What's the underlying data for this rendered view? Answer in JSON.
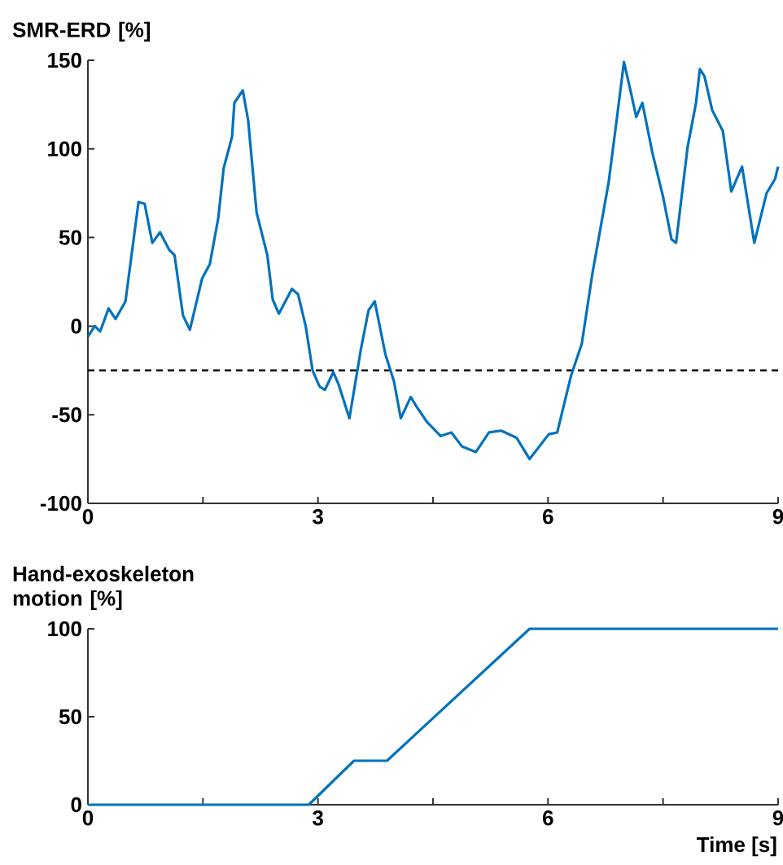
{
  "chart_data": [
    {
      "type": "line",
      "ylabel": "SMR-ERD [%]",
      "x": [
        0,
        0.09,
        0.16,
        0.27,
        0.36,
        0.49,
        0.56,
        0.66,
        0.74,
        0.84,
        0.94,
        1.06,
        1.13,
        1.24,
        1.33,
        1.49,
        1.59,
        1.7,
        1.77,
        1.88,
        1.91,
        2.02,
        2.09,
        2.2,
        2.34,
        2.41,
        2.49,
        2.66,
        2.74,
        2.84,
        2.93,
        3.02,
        3.09,
        3.2,
        3.27,
        3.41,
        3.56,
        3.66,
        3.74,
        3.88,
        3.99,
        4.08,
        4.21,
        4.28,
        4.42,
        4.6,
        4.74,
        4.88,
        5.06,
        5.23,
        5.39,
        5.59,
        5.76,
        6.01,
        6.12,
        6.3,
        6.44,
        6.58,
        6.79,
        6.9,
        6.99,
        7.08,
        7.15,
        7.23,
        7.36,
        7.5,
        7.61,
        7.67,
        7.82,
        7.93,
        7.98,
        8.04,
        8.14,
        8.28,
        8.39,
        8.53,
        8.69,
        8.85,
        8.96,
        9.0
      ],
      "series": [
        {
          "color": "#0072bd",
          "values": [
            -6,
            0,
            -3,
            10,
            4,
            14,
            37,
            70,
            69,
            47,
            53,
            43,
            40,
            6,
            -2,
            27,
            35,
            61,
            89,
            107,
            126,
            133,
            116,
            64,
            40,
            15,
            7,
            21,
            18,
            0,
            -25,
            -34,
            -36,
            -26,
            -33,
            -52,
            -13,
            9,
            14,
            -16,
            -31,
            -52,
            -40,
            -45,
            -54,
            -62,
            -60,
            -68,
            -71,
            -60,
            -59,
            -63,
            -75,
            -61,
            -60,
            -28,
            -10,
            30,
            81,
            118,
            149,
            132,
            118,
            126,
            98,
            73,
            49,
            47,
            101,
            126,
            145,
            141,
            122,
            110,
            76,
            90,
            47,
            75,
            83,
            90
          ]
        }
      ],
      "xlim": [
        0,
        9
      ],
      "ylim": [
        -100,
        150
      ],
      "xticks": [
        0,
        {
          "value": 1.5,
          "label": null
        },
        3,
        {
          "value": 4.5,
          "label": null
        },
        6,
        {
          "value": 7.5,
          "label": null
        },
        9
      ],
      "yticks": [
        -100,
        -50,
        0,
        50,
        100,
        150
      ],
      "ref_lines": [
        {
          "axis": "y",
          "value": -25,
          "color": "#000000",
          "line_style": "dashed"
        }
      ]
    },
    {
      "type": "line",
      "ylabel": "Hand-exoskeleton motion [%]",
      "xlabel": "Time [s]",
      "x": [
        0,
        2.88,
        3.47,
        3.9,
        5.76,
        9
      ],
      "series": [
        {
          "color": "#0072bd",
          "values": [
            0,
            0,
            25,
            25,
            100,
            100
          ]
        }
      ],
      "xlim": [
        0,
        9
      ],
      "ylim": [
        0,
        100
      ],
      "xticks": [
        0,
        {
          "value": 1.5,
          "label": null
        },
        3,
        {
          "value": 4.5,
          "label": null
        },
        6,
        {
          "value": 7.5,
          "label": null
        },
        9
      ],
      "yticks": [
        0,
        50,
        100
      ]
    }
  ]
}
